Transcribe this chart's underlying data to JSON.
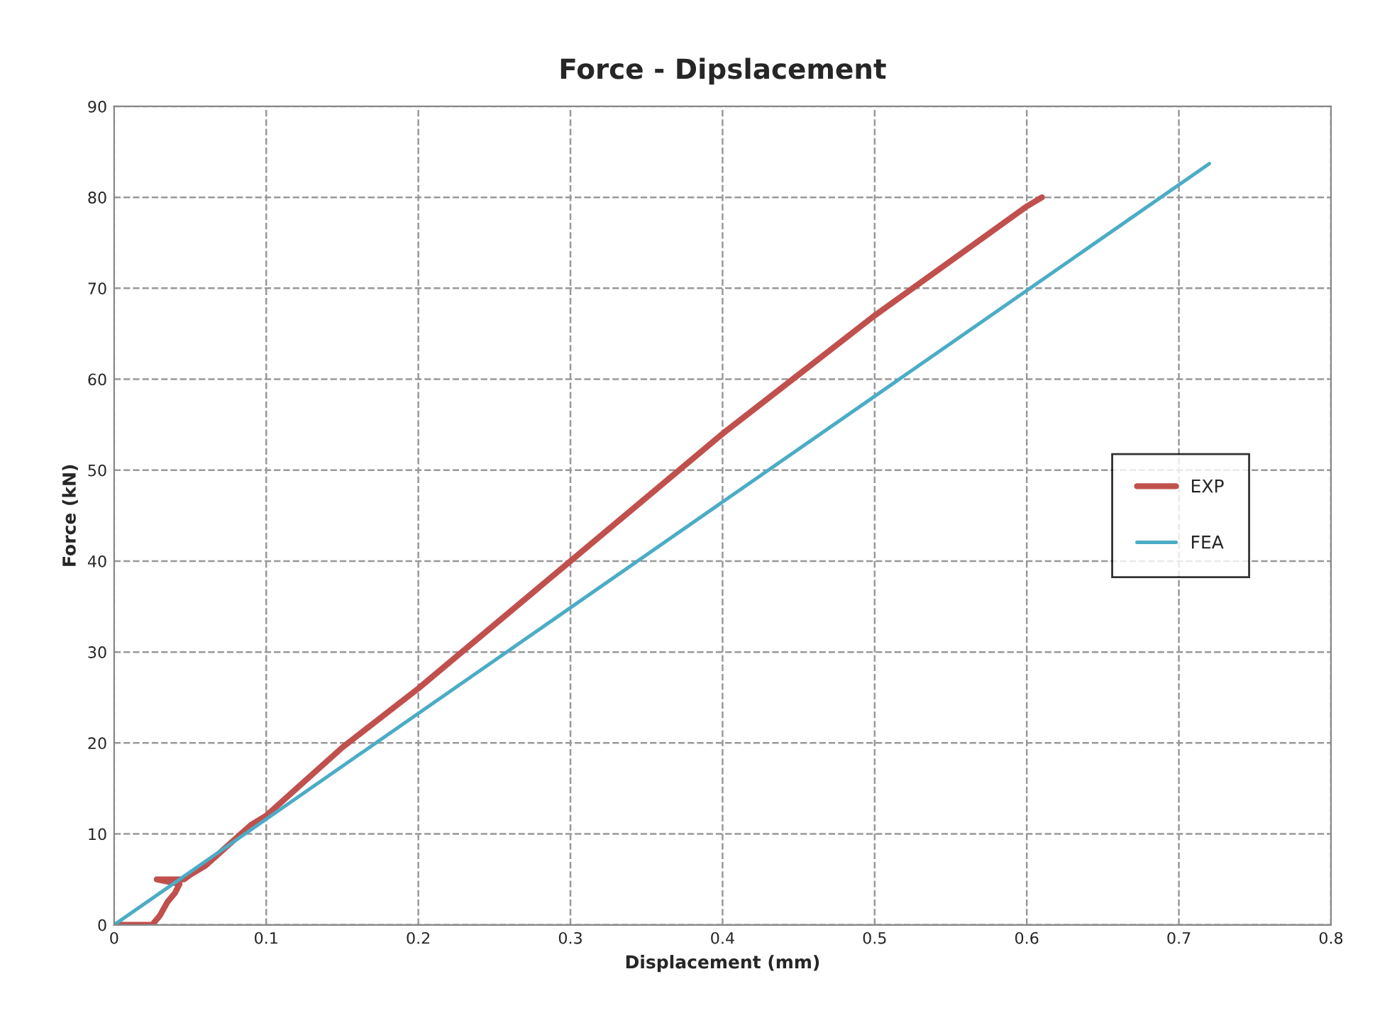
{
  "chart_data": {
    "type": "line",
    "title": "Force - Dipslacement",
    "xlabel": "Displacement (mm)",
    "ylabel": "Force (kN)",
    "series": [
      {
        "name": "EXP",
        "color": "#c0504d",
        "x": [
          0,
          0.025,
          0.03,
          0.035,
          0.04,
          0.043,
          0.028,
          0.046,
          0.05,
          0.06,
          0.07,
          0.08,
          0.09,
          0.1,
          0.12,
          0.15,
          0.2,
          0.25,
          0.3,
          0.35,
          0.4,
          0.45,
          0.5,
          0.55,
          0.6,
          0.61
        ],
        "values": [
          0,
          0,
          1,
          2.5,
          3.5,
          4.5,
          5,
          5,
          5.5,
          6.5,
          8,
          9.5,
          11,
          12,
          15,
          19.5,
          26,
          33,
          40,
          47,
          54,
          60.5,
          67,
          73,
          79,
          80
        ]
      },
      {
        "name": "FEA",
        "color": "#4bacc6",
        "x": [
          0,
          0.72
        ],
        "values": [
          0,
          83.7
        ]
      }
    ],
    "xlim": [
      0,
      0.8
    ],
    "xticks": [
      0,
      0.1,
      0.2,
      0.3,
      0.4,
      0.5,
      0.6,
      0.7,
      0.8
    ],
    "ylim": [
      0,
      90
    ],
    "yticks": [
      0,
      10,
      20,
      30,
      40,
      50,
      60,
      70,
      80,
      90
    ],
    "grid": true,
    "legend": "center right",
    "marker": "none",
    "line_style": "solid"
  }
}
